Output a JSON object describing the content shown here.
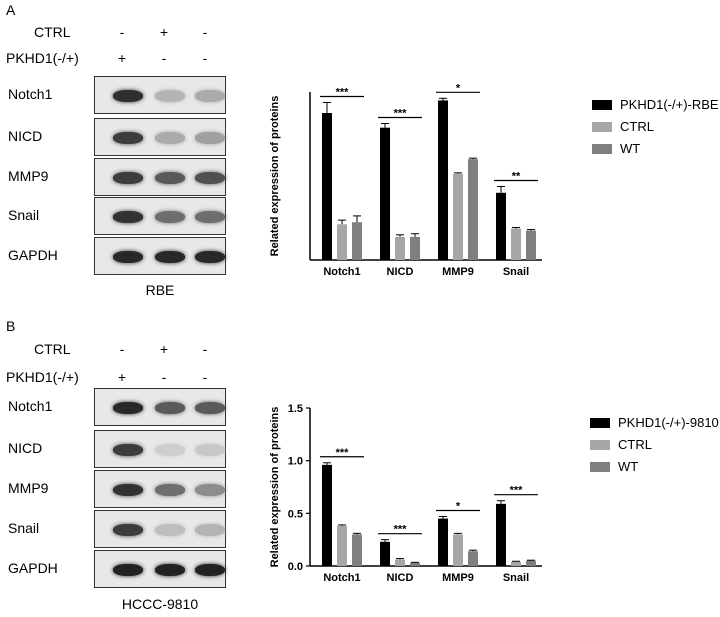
{
  "panels": [
    {
      "letter": "A",
      "conditions": [
        {
          "label": "CTRL",
          "signs": [
            "-",
            "+",
            "-"
          ]
        },
        {
          "label": "PKHD1(-/+)",
          "signs": [
            "+",
            "-",
            "-"
          ]
        }
      ],
      "blots": [
        {
          "name": "Notch1",
          "intensity": [
            0.92,
            0.25,
            0.3
          ]
        },
        {
          "name": "NICD",
          "intensity": [
            0.85,
            0.3,
            0.35
          ]
        },
        {
          "name": "MMP9",
          "intensity": [
            0.85,
            0.7,
            0.75
          ]
        },
        {
          "name": "Snail",
          "intensity": [
            0.9,
            0.6,
            0.6
          ]
        },
        {
          "name": "GAPDH",
          "intensity": [
            0.95,
            0.95,
            0.95
          ]
        }
      ],
      "caption": "RBE"
    },
    {
      "letter": "B",
      "conditions": [
        {
          "label": "CTRL",
          "signs": [
            "-",
            "+",
            "-"
          ]
        },
        {
          "label": "PKHD1(-/+)",
          "signs": [
            "+",
            "-",
            "-"
          ]
        }
      ],
      "blots": [
        {
          "name": "Notch1",
          "intensity": [
            0.95,
            0.7,
            0.7
          ]
        },
        {
          "name": "NICD",
          "intensity": [
            0.85,
            0.12,
            0.15
          ]
        },
        {
          "name": "MMP9",
          "intensity": [
            0.9,
            0.6,
            0.45
          ]
        },
        {
          "name": "Snail",
          "intensity": [
            0.85,
            0.2,
            0.25
          ]
        },
        {
          "name": "GAPDH",
          "intensity": [
            0.98,
            0.98,
            0.98
          ]
        }
      ],
      "caption": "HCCC-9810"
    }
  ],
  "chart_data": [
    {
      "type": "bar",
      "title": "",
      "xlabel": "",
      "ylabel": "Related expression of proteins",
      "ylim": [
        0,
        0.8
      ],
      "yticks": [],
      "categories": [
        "Notch1",
        "NICD",
        "MMP9",
        "Snail"
      ],
      "series": [
        {
          "name": "PKHD1(-/+)-RBE",
          "color": "#000000",
          "values": [
            0.7,
            0.63,
            0.76,
            0.32
          ],
          "errors": [
            0.05,
            0.02,
            0.01,
            0.03
          ]
        },
        {
          "name": "CTRL",
          "color": "#a6a6a6",
          "values": [
            0.17,
            0.11,
            0.41,
            0.15
          ],
          "errors": [
            0.02,
            0.01,
            0.005,
            0.005
          ]
        },
        {
          "name": "WT",
          "color": "#7f7f7f",
          "values": [
            0.18,
            0.11,
            0.48,
            0.14
          ],
          "errors": [
            0.03,
            0.015,
            0.005,
            0.005
          ]
        }
      ],
      "significance": [
        "***",
        "***",
        "*",
        "**"
      ],
      "grid": false,
      "legend": "right"
    },
    {
      "type": "bar",
      "title": "",
      "xlabel": "",
      "ylabel": "Related expression of proteins",
      "ylim": [
        0,
        1.5
      ],
      "yticks": [
        "0.0",
        "0.5",
        "1.0",
        "1.5"
      ],
      "categories": [
        "Notch1",
        "NICD",
        "MMP9",
        "Snail"
      ],
      "series": [
        {
          "name": "PKHD1(-/+)-9810",
          "color": "#000000",
          "values": [
            0.96,
            0.23,
            0.45,
            0.59
          ],
          "errors": [
            0.02,
            0.02,
            0.02,
            0.03
          ]
        },
        {
          "name": "CTRL",
          "color": "#a6a6a6",
          "values": [
            0.38,
            0.06,
            0.3,
            0.04
          ],
          "errors": [
            0.01,
            0.01,
            0.01,
            0.005
          ]
        },
        {
          "name": "WT",
          "color": "#7f7f7f",
          "values": [
            0.3,
            0.03,
            0.14,
            0.05
          ],
          "errors": [
            0.01,
            0.005,
            0.01,
            0.005
          ]
        }
      ],
      "significance": [
        "***",
        "***",
        "*",
        "***"
      ],
      "grid": false,
      "legend": "right"
    }
  ]
}
